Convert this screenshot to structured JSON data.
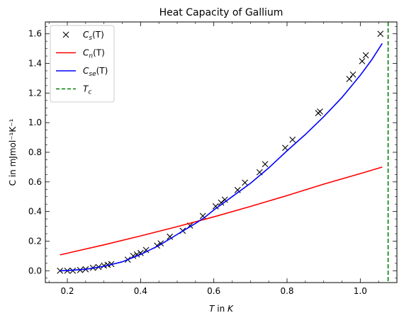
{
  "chart_data": {
    "type": "line",
    "title": "Heat Capacity of Gallium",
    "xlabel": {
      "plain": "",
      "italic": "T",
      "rest": " in ",
      "unit": "K"
    },
    "ylabel": "C in mJmol⁻¹K⁻¹",
    "xlim": [
      0.14,
      1.1
    ],
    "ylim": [
      -0.08,
      1.68
    ],
    "xticks": [
      0.2,
      0.4,
      0.6,
      0.8,
      1.0
    ],
    "xtick_labels": [
      "0.2",
      "0.4",
      "0.6",
      "0.8",
      "1.0"
    ],
    "yticks": [
      0.0,
      0.2,
      0.4,
      0.6,
      0.8,
      1.0,
      1.2,
      1.4,
      1.6
    ],
    "ytick_labels": [
      "0.0",
      "0.2",
      "0.4",
      "0.6",
      "0.8",
      "1.0",
      "1.2",
      "1.4",
      "1.6"
    ],
    "grid": false,
    "legend_position": "top-left",
    "series": [
      {
        "name": "Cs(T)",
        "legend_main": "C",
        "legend_sub": "s",
        "legend_arg": "(T)",
        "style": "marker-x",
        "color": "#000000",
        "x": [
          0.18,
          0.2,
          0.215,
          0.235,
          0.25,
          0.27,
          0.285,
          0.3,
          0.31,
          0.32,
          0.365,
          0.38,
          0.39,
          0.4,
          0.415,
          0.445,
          0.455,
          0.48,
          0.515,
          0.535,
          0.57,
          0.605,
          0.62,
          0.63,
          0.665,
          0.685,
          0.725,
          0.74,
          0.795,
          0.815,
          0.885,
          0.89,
          0.97,
          0.98,
          1.005,
          1.015,
          1.055
        ],
        "y": [
          0.0,
          0.0,
          0.0,
          0.005,
          0.01,
          0.02,
          0.025,
          0.035,
          0.04,
          0.045,
          0.075,
          0.1,
          0.11,
          0.12,
          0.14,
          0.17,
          0.185,
          0.23,
          0.27,
          0.305,
          0.37,
          0.435,
          0.46,
          0.48,
          0.545,
          0.595,
          0.665,
          0.72,
          0.83,
          0.885,
          1.065,
          1.075,
          1.295,
          1.325,
          1.415,
          1.455,
          1.6
        ]
      },
      {
        "name": "Cn(T)",
        "legend_main": "C",
        "legend_sub": "n",
        "legend_arg": "(T)",
        "style": "line",
        "color": "#ff0000",
        "x": [
          0.18,
          0.3,
          0.4,
          0.5,
          0.6,
          0.7,
          0.8,
          0.9,
          1.0,
          1.06
        ],
        "y": [
          0.107,
          0.175,
          0.235,
          0.298,
          0.364,
          0.434,
          0.508,
          0.585,
          0.656,
          0.7
        ]
      },
      {
        "name": "Cse(T)",
        "legend_main": "C",
        "legend_sub": "se",
        "legend_arg": "(T)",
        "style": "line",
        "color": "#0000ff",
        "x": [
          0.18,
          0.2,
          0.25,
          0.3,
          0.35,
          0.4,
          0.45,
          0.5,
          0.55,
          0.575,
          0.6,
          0.65,
          0.7,
          0.75,
          0.8,
          0.85,
          0.9,
          0.95,
          0.97,
          1.0,
          1.03,
          1.06
        ],
        "y": [
          0.0,
          0.002,
          0.01,
          0.03,
          0.06,
          0.11,
          0.17,
          0.245,
          0.32,
          0.36,
          0.41,
          0.5,
          0.59,
          0.695,
          0.81,
          0.92,
          1.04,
          1.17,
          1.23,
          1.32,
          1.42,
          1.535
        ]
      },
      {
        "name": "Tc",
        "legend_main": "T",
        "legend_sub": "c",
        "legend_arg": "",
        "style": "vline-dashed",
        "color": "#008000",
        "x": [
          1.076
        ]
      }
    ]
  }
}
